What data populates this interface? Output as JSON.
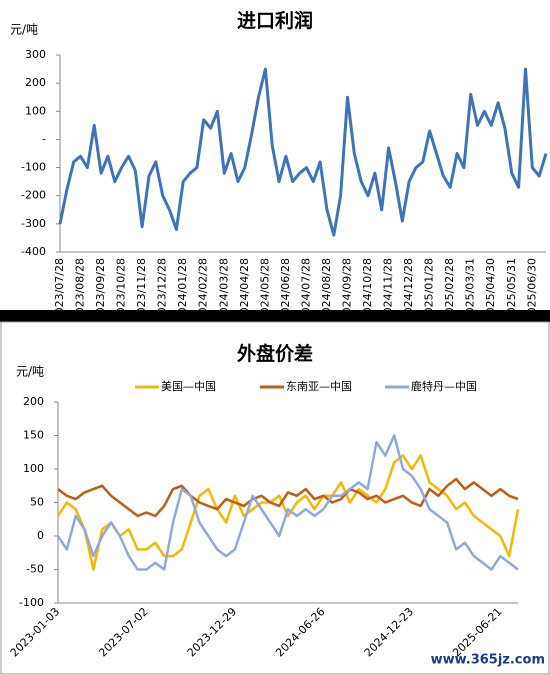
{
  "chart_data": [
    {
      "type": "line",
      "title": "进口利润",
      "y_label": "元/吨",
      "categories": [
        "2023/07/28",
        null,
        null,
        "2023/08/28",
        null,
        null,
        "2023/09/28",
        null,
        null,
        "2023/10/28",
        null,
        null,
        "2023/11/28",
        null,
        null,
        "2023/12/28",
        null,
        null,
        "2024/01/28",
        null,
        null,
        "2024/02/28",
        null,
        null,
        "2024/03/28",
        null,
        null,
        "2024/04/28",
        null,
        null,
        "2024/05/28",
        null,
        null,
        "2024/06/28",
        null,
        null,
        "2024/07/28",
        null,
        null,
        "2024/08/28",
        null,
        null,
        "2024/09/28",
        null,
        null,
        "2024/10/28",
        null,
        null,
        "2024/11/28",
        null,
        null,
        "2024/12/28",
        null,
        null,
        "2025/01/28",
        null,
        null,
        "2025/02/28",
        null,
        null,
        "2025/03/31",
        null,
        null,
        "2025/04/30",
        null,
        null,
        "2025/05/31",
        null,
        null,
        "2025/06/30",
        null,
        null
      ],
      "series": [
        {
          "name": "进口利润",
          "color": "#3f73b8",
          "values": [
            -300,
            -180,
            -80,
            -60,
            -100,
            50,
            -120,
            -60,
            -150,
            -100,
            -60,
            -110,
            -310,
            -130,
            -80,
            -200,
            -250,
            -320,
            -150,
            -120,
            -100,
            70,
            40,
            100,
            -120,
            -50,
            -150,
            -100,
            20,
            150,
            250,
            -20,
            -150,
            -60,
            -150,
            -120,
            -100,
            -150,
            -80,
            -250,
            -340,
            -200,
            150,
            -50,
            -150,
            -200,
            -120,
            -250,
            -30,
            -150,
            -290,
            -150,
            -100,
            -80,
            30,
            -50,
            -130,
            -170,
            -50,
            -100,
            160,
            50,
            100,
            50,
            130,
            40,
            -120,
            -170,
            250,
            -100,
            -130,
            -50
          ]
        }
      ],
      "ylim": [
        -400,
        300
      ],
      "yticks": [
        -400,
        -300,
        -200,
        -100,
        {
          "value": 0,
          "label": "-"
        },
        100,
        200,
        300
      ],
      "grid": false,
      "legend": "none"
    },
    {
      "type": "line",
      "title": "外盘价差",
      "y_label": "元/吨",
      "categories": [
        "2023-01-03",
        null,
        null,
        null,
        null,
        null,
        null,
        null,
        null,
        null,
        "2023-07-02",
        null,
        null,
        null,
        null,
        null,
        null,
        null,
        null,
        null,
        "2023-12-29",
        null,
        null,
        null,
        null,
        null,
        null,
        null,
        null,
        null,
        "2024-06-26",
        null,
        null,
        null,
        null,
        null,
        null,
        null,
        null,
        null,
        "2024-12-23",
        null,
        null,
        null,
        null,
        null,
        null,
        null,
        null,
        null,
        "2025-06-21",
        null,
        null
      ],
      "series": [
        {
          "name": "美国—中国",
          "color": "#f5b800",
          "values": [
            30,
            50,
            40,
            10,
            -50,
            10,
            20,
            0,
            10,
            -20,
            -20,
            -10,
            -30,
            -30,
            -20,
            20,
            60,
            70,
            40,
            20,
            60,
            30,
            40,
            50,
            50,
            60,
            30,
            50,
            60,
            40,
            60,
            60,
            80,
            50,
            70,
            60,
            50,
            70,
            110,
            120,
            100,
            120,
            80,
            70,
            60,
            40,
            50,
            30,
            20,
            10,
            0,
            -30,
            40
          ]
        },
        {
          "name": "东南亚—中国",
          "color": "#c55a11",
          "values": [
            70,
            60,
            55,
            65,
            70,
            75,
            60,
            50,
            40,
            30,
            35,
            30,
            45,
            70,
            75,
            60,
            50,
            45,
            40,
            55,
            50,
            45,
            55,
            60,
            50,
            45,
            65,
            60,
            70,
            55,
            60,
            50,
            55,
            70,
            65,
            55,
            60,
            50,
            55,
            60,
            50,
            45,
            70,
            60,
            75,
            85,
            70,
            80,
            70,
            60,
            70,
            60,
            55
          ]
        },
        {
          "name": "鹿特丹—中国",
          "color": "#8ea9db",
          "values": [
            0,
            -20,
            30,
            10,
            -30,
            0,
            20,
            0,
            -30,
            -50,
            -50,
            -40,
            -50,
            20,
            70,
            60,
            20,
            0,
            -20,
            -30,
            -20,
            20,
            60,
            40,
            20,
            0,
            40,
            30,
            40,
            30,
            40,
            60,
            60,
            70,
            80,
            70,
            140,
            120,
            150,
            100,
            90,
            70,
            40,
            30,
            20,
            -20,
            -10,
            -30,
            -40,
            -50,
            -30,
            -40,
            -50
          ]
        }
      ],
      "ylim": [
        -100,
        200
      ],
      "yticks": [
        -100,
        -50,
        0,
        50,
        100,
        150,
        200
      ],
      "grid": false,
      "legend": "top"
    }
  ],
  "watermark": "www.365jz.com"
}
